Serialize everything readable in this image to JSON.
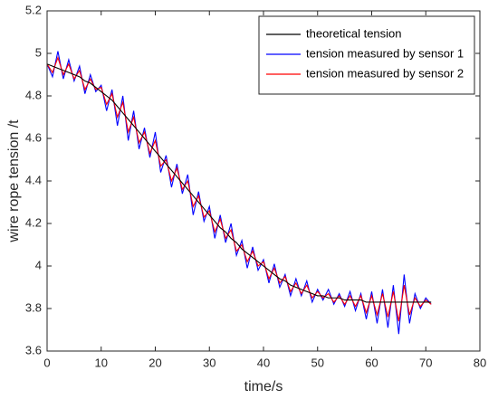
{
  "chart_data": {
    "type": "line",
    "xlabel": "time/s",
    "ylabel": "wire rope tension /t",
    "x": [
      0,
      1,
      2,
      3,
      4,
      5,
      6,
      7,
      8,
      9,
      10,
      11,
      12,
      13,
      14,
      15,
      16,
      17,
      18,
      19,
      20,
      21,
      22,
      23,
      24,
      25,
      26,
      27,
      28,
      29,
      30,
      31,
      32,
      33,
      34,
      35,
      36,
      37,
      38,
      39,
      40,
      41,
      42,
      43,
      44,
      45,
      46,
      47,
      48,
      49,
      50,
      51,
      52,
      53,
      54,
      55,
      56,
      57,
      58,
      59,
      60,
      61,
      62,
      63,
      64,
      65,
      66,
      67,
      68,
      69,
      70,
      71
    ],
    "series": [
      {
        "name": "theoretical tension",
        "color": "#000000",
        "values": [
          4.95,
          4.94,
          4.93,
          4.92,
          4.91,
          4.9,
          4.89,
          4.87,
          4.86,
          4.84,
          4.82,
          4.8,
          4.78,
          4.75,
          4.72,
          4.69,
          4.66,
          4.63,
          4.6,
          4.57,
          4.54,
          4.51,
          4.48,
          4.45,
          4.42,
          4.39,
          4.36,
          4.33,
          4.3,
          4.27,
          4.24,
          4.21,
          4.18,
          4.16,
          4.13,
          4.11,
          4.08,
          4.06,
          4.04,
          4.02,
          4.0,
          3.98,
          3.96,
          3.94,
          3.93,
          3.91,
          3.9,
          3.89,
          3.88,
          3.87,
          3.86,
          3.86,
          3.85,
          3.85,
          3.85,
          3.84,
          3.84,
          3.84,
          3.84,
          3.83,
          3.83,
          3.83,
          3.83,
          3.83,
          3.83,
          3.83,
          3.83,
          3.83,
          3.83,
          3.83,
          3.83,
          3.83
        ]
      },
      {
        "name": "tension measured by sensor 1",
        "color": "#0000ff",
        "values": [
          4.95,
          4.89,
          5.01,
          4.88,
          4.97,
          4.87,
          4.94,
          4.81,
          4.9,
          4.82,
          4.85,
          4.73,
          4.83,
          4.66,
          4.8,
          4.59,
          4.73,
          4.55,
          4.65,
          4.51,
          4.63,
          4.44,
          4.52,
          4.37,
          4.48,
          4.34,
          4.43,
          4.24,
          4.35,
          4.21,
          4.28,
          4.13,
          4.24,
          4.11,
          4.2,
          4.05,
          4.12,
          3.99,
          4.09,
          3.98,
          4.03,
          3.92,
          4.01,
          3.9,
          3.96,
          3.86,
          3.94,
          3.86,
          3.93,
          3.83,
          3.89,
          3.84,
          3.89,
          3.82,
          3.87,
          3.81,
          3.88,
          3.79,
          3.87,
          3.75,
          3.88,
          3.73,
          3.89,
          3.71,
          3.91,
          3.68,
          3.96,
          3.73,
          3.87,
          3.8,
          3.85,
          3.82
        ]
      },
      {
        "name": "tension measured by sensor 2",
        "color": "#ff0000",
        "values": [
          4.95,
          4.91,
          4.98,
          4.9,
          4.95,
          4.88,
          4.92,
          4.83,
          4.88,
          4.83,
          4.84,
          4.76,
          4.81,
          4.7,
          4.77,
          4.63,
          4.7,
          4.58,
          4.63,
          4.53,
          4.59,
          4.47,
          4.5,
          4.4,
          4.46,
          4.36,
          4.4,
          4.28,
          4.33,
          4.23,
          4.26,
          4.16,
          4.22,
          4.13,
          4.17,
          4.07,
          4.1,
          4.02,
          4.07,
          4.0,
          4.02,
          3.94,
          3.99,
          3.92,
          3.95,
          3.88,
          3.92,
          3.87,
          3.91,
          3.85,
          3.88,
          3.85,
          3.87,
          3.83,
          3.86,
          3.82,
          3.86,
          3.81,
          3.86,
          3.78,
          3.86,
          3.77,
          3.87,
          3.76,
          3.88,
          3.74,
          3.91,
          3.77,
          3.85,
          3.81,
          3.84,
          3.82
        ]
      }
    ],
    "xlim": [
      0,
      80
    ],
    "xticks": [
      0,
      10,
      20,
      30,
      40,
      50,
      60,
      70,
      80
    ],
    "ylim": [
      3.6,
      5.2
    ],
    "yticks": [
      3.6,
      3.8,
      4,
      4.2,
      4.4,
      4.6,
      4.8,
      5,
      5.2
    ],
    "grid": false,
    "legend": "upper right"
  }
}
